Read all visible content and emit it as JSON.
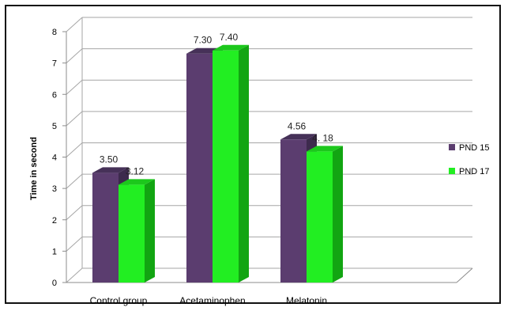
{
  "chart_data": {
    "type": "bar",
    "categories": [
      "Control group",
      "Acetaminophen",
      "Melatonin"
    ],
    "series": [
      {
        "name": "PND 15",
        "values": [
          3.5,
          7.3,
          4.56
        ],
        "labels": [
          "3.50",
          "7.30",
          "4.56"
        ],
        "color": "#5b3d6f",
        "side_color": "#3d2a4d",
        "top_color": "#463158"
      },
      {
        "name": "PND 17",
        "values": [
          3.12,
          7.4,
          4.18
        ],
        "labels": [
          "3.12",
          "7.40",
          "4. 18"
        ],
        "color": "#22ee22",
        "side_color": "#12a512",
        "top_color": "#1cc81c"
      }
    ],
    "title": "",
    "xlabel": "",
    "ylabel": "Time in second",
    "ylim": [
      0,
      8
    ],
    "yticks": [
      "0",
      "1",
      "2",
      "3",
      "4",
      "5",
      "6",
      "7",
      "8"
    ],
    "grid": true,
    "legend": "right"
  }
}
